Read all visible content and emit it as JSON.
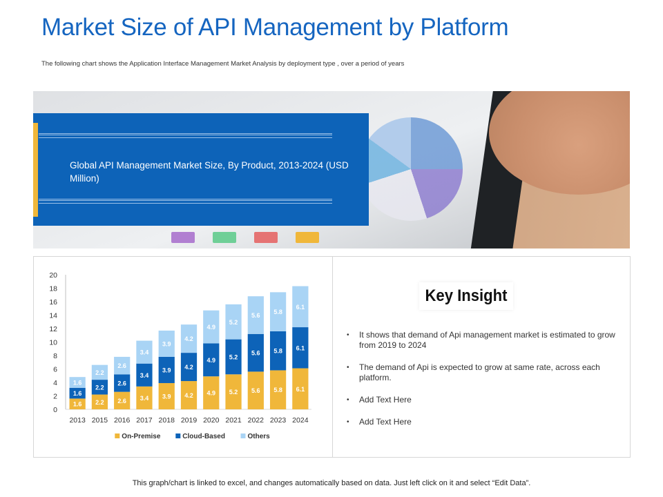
{
  "header": {
    "title": "Market Size of API Management by Platform",
    "subtitle": "The following chart shows the Application Interface Management Market Analysis by deployment type , over a period of years"
  },
  "hero": {
    "text": "Global API Management Market Size, By Product, 2013-2024 (USD Million)"
  },
  "chart_data": {
    "type": "bar",
    "stacked": true,
    "categories": [
      "2013",
      "2015",
      "2016",
      "2017",
      "2018",
      "2019",
      "2020",
      "2021",
      "2022",
      "2023",
      "2024"
    ],
    "series": [
      {
        "name": "On-Premise",
        "color": "#f0b73a",
        "values": [
          1.6,
          2.2,
          2.6,
          3.4,
          3.9,
          4.2,
          4.9,
          5.2,
          5.6,
          5.8,
          6.1
        ]
      },
      {
        "name": "Cloud-Based",
        "color": "#0d63b8",
        "values": [
          1.6,
          2.2,
          2.6,
          3.4,
          3.9,
          4.2,
          4.9,
          5.2,
          5.6,
          5.8,
          6.1
        ]
      },
      {
        "name": "Others",
        "color": "#a9d4f5",
        "values": [
          1.6,
          2.2,
          2.6,
          3.4,
          3.9,
          4.2,
          4.9,
          5.2,
          5.6,
          5.8,
          6.1
        ]
      }
    ],
    "yticks": [
      "0",
      "2",
      "4",
      "6",
      "8",
      "10",
      "12",
      "14",
      "16",
      "18",
      "20"
    ],
    "ylim": [
      0,
      20
    ],
    "legend_position": "bottom",
    "grid": false
  },
  "insight": {
    "title": "Key Insight",
    "bullets": [
      "It shows that demand of Api management market is estimated to grow from 2019 to 2024",
      "The demand of Api is expected to grow at same rate, across each platform.",
      "Add Text Here",
      "Add Text Here"
    ]
  },
  "footer": {
    "note": "This graph/chart is linked to excel, and changes automatically based on data. Just left click on it and select “Edit Data”."
  }
}
